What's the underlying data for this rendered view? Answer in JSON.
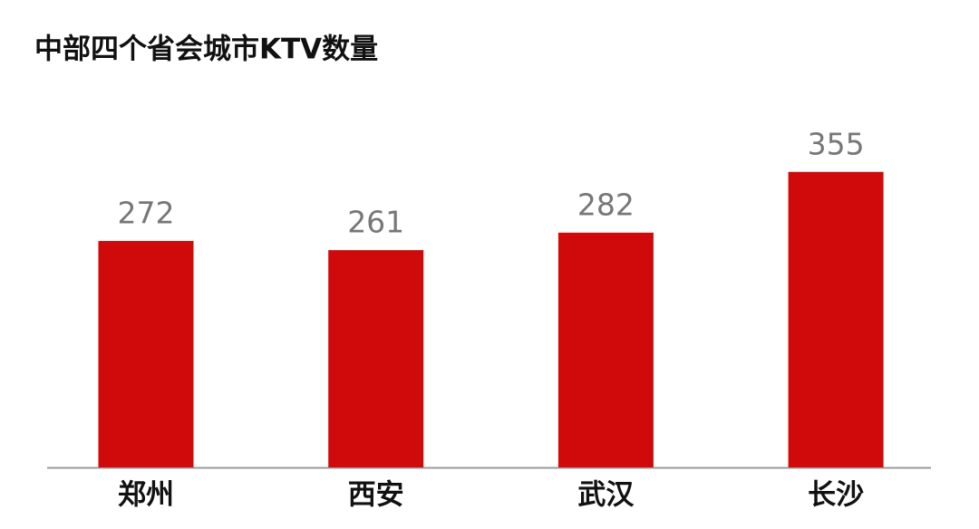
{
  "chart_data": {
    "type": "bar",
    "title": "中部四个省会城市KTV数量",
    "categories": [
      "郑州",
      "西安",
      "武汉",
      "长沙"
    ],
    "values": [
      272,
      261,
      282,
      355
    ],
    "color": "#d00a0a",
    "grid": false
  }
}
